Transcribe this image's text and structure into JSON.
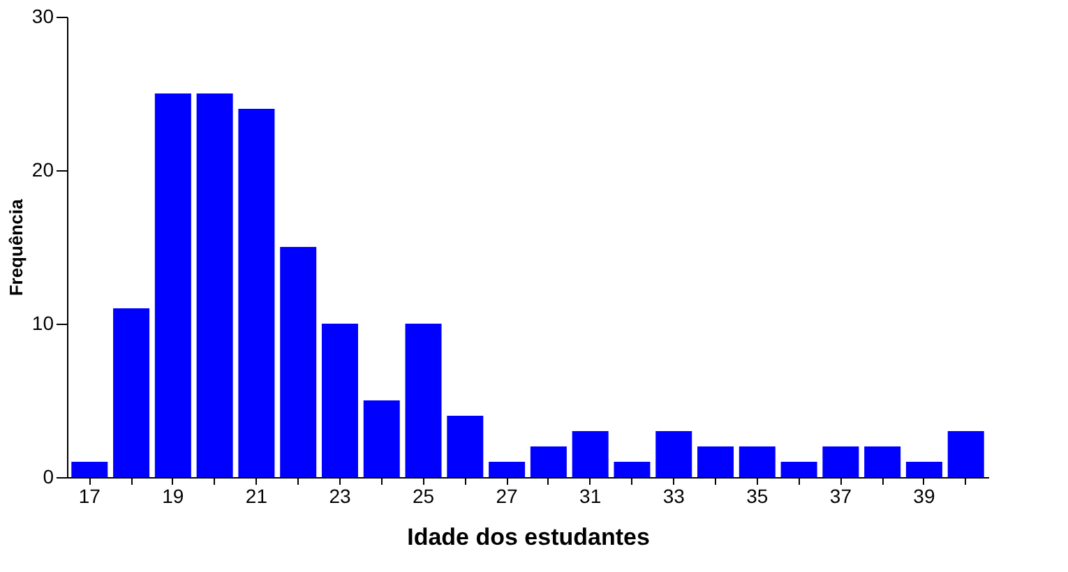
{
  "chart_data": {
    "type": "bar",
    "xlabel": "Idade dos estudantes",
    "ylabel": "Frequência",
    "categories": [
      "17",
      null,
      "19",
      null,
      "21",
      null,
      "23",
      null,
      "25",
      null,
      "27",
      null,
      "31",
      null,
      "33",
      null,
      "35",
      null,
      "37",
      null,
      "39",
      null
    ],
    "values": [
      1,
      11,
      25,
      25,
      24,
      15,
      10,
      5,
      10,
      4,
      1,
      2,
      3,
      1,
      3,
      2,
      2,
      1,
      2,
      2,
      1,
      3
    ],
    "color": "#0000ff",
    "ylim": [
      0,
      30
    ],
    "yticks": [
      0,
      10,
      20,
      30
    ],
    "grid": false
  }
}
